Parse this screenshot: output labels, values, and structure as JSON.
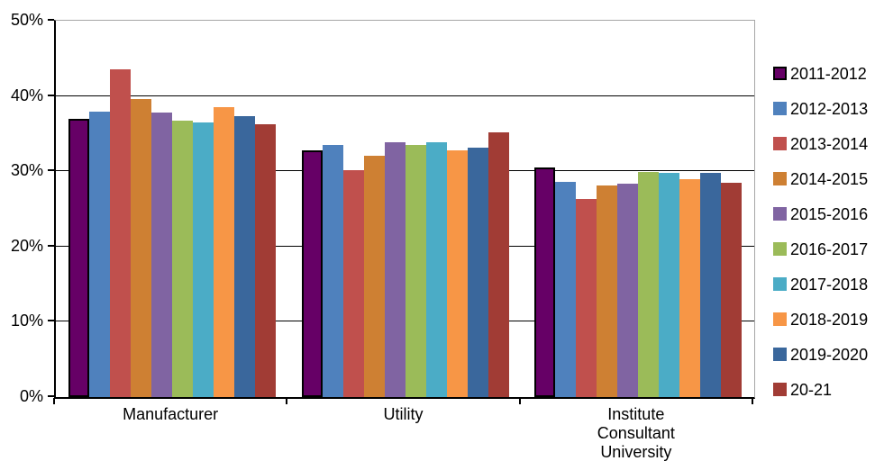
{
  "chart_data": {
    "type": "bar",
    "title": "",
    "xlabel": "",
    "ylabel": "",
    "ylim": [
      0,
      50
    ],
    "y_tick_values": [
      0,
      10,
      20,
      30,
      40,
      50
    ],
    "y_tick_labels": [
      "0%",
      "10%",
      "20%",
      "30%",
      "40%",
      "50%"
    ],
    "grid": "horizontal",
    "legend_position": "right",
    "categories": [
      "Manufacturer",
      "Utility",
      "Institute Consultant University"
    ],
    "category_label_lines": [
      [
        "Manufacturer"
      ],
      [
        "Utility"
      ],
      [
        "Institute",
        "Consultant",
        "University"
      ]
    ],
    "series": [
      {
        "name": "2011-2012",
        "color": "#660066",
        "border_color": "#000000",
        "values": [
          37.0,
          32.8,
          30.5
        ]
      },
      {
        "name": "2012-2013",
        "color": "#4F81BD",
        "values": [
          37.9,
          33.5,
          28.6
        ]
      },
      {
        "name": "2013-2014",
        "color": "#C0504D",
        "values": [
          43.6,
          30.2,
          26.3
        ]
      },
      {
        "name": "2014-2015",
        "color": "#CE8033",
        "values": [
          39.6,
          32.1,
          28.1
        ]
      },
      {
        "name": "2015-2016",
        "color": "#8064A2",
        "values": [
          37.8,
          33.8,
          28.4
        ]
      },
      {
        "name": "2016-2017",
        "color": "#9BBB59",
        "values": [
          36.7,
          33.5,
          29.9
        ]
      },
      {
        "name": "2017-2018",
        "color": "#4BACC6",
        "values": [
          36.5,
          33.8,
          29.8
        ]
      },
      {
        "name": "2018-2019",
        "color": "#F79646",
        "values": [
          38.5,
          32.8,
          28.9
        ]
      },
      {
        "name": "2019-2020",
        "color": "#3A679C",
        "values": [
          37.3,
          33.1,
          29.8
        ]
      },
      {
        "name": "20-21",
        "color": "#A13C35",
        "values": [
          36.3,
          35.2,
          28.5
        ]
      }
    ]
  }
}
